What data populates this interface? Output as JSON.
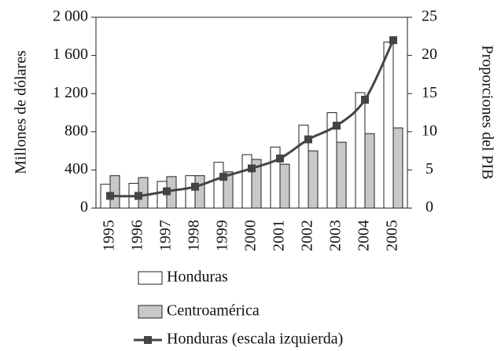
{
  "chart_data": {
    "type": "bar",
    "categories": [
      "1995",
      "1996",
      "1997",
      "1998",
      "1999",
      "2000",
      "2001",
      "2002",
      "2003",
      "2004",
      "2005"
    ],
    "y_label": "Millones de dólares",
    "y2_label": "Proporciones del PIB",
    "series": [
      {
        "name": "Honduras",
        "color": "#ffffff",
        "values": [
          250,
          260,
          280,
          340,
          480,
          560,
          640,
          870,
          1000,
          1210,
          1740
        ]
      },
      {
        "name": "Centroamérica",
        "color": "#c8c8c8",
        "values": [
          340,
          320,
          330,
          340,
          380,
          510,
          460,
          600,
          690,
          780,
          840
        ]
      },
      {
        "name": "Honduras (escala izquierda)",
        "color": "#444444",
        "type": "line",
        "axis": "y2",
        "values": [
          1.6,
          1.6,
          2.2,
          2.8,
          4.1,
          5.2,
          6.5,
          9.0,
          10.8,
          14.2,
          22.0
        ]
      }
    ],
    "ylim": [
      0,
      2000
    ],
    "yticks": [
      0,
      400,
      800,
      {
        "value": 1200,
        "label": "1 200"
      },
      {
        "value": 1600,
        "label": "1 600"
      },
      {
        "value": 2000,
        "label": "2 000"
      }
    ],
    "y2lim": [
      0,
      25
    ],
    "y2ticks": [
      0,
      5,
      10,
      15,
      20,
      25
    ]
  }
}
